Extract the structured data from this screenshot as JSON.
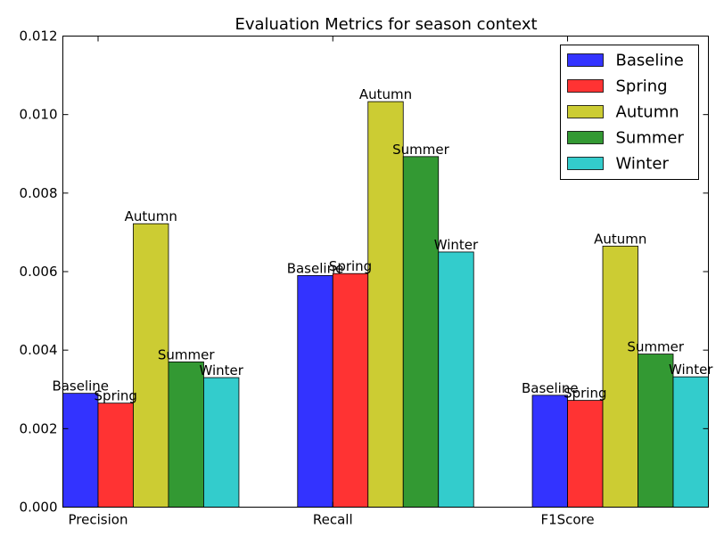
{
  "chart_data": {
    "type": "bar",
    "title": "Evaluation Metrics for season context",
    "xlabel": "",
    "ylabel": "",
    "categories": [
      "Precision",
      "Recall",
      "F1Score"
    ],
    "ylim": [
      0,
      0.012
    ],
    "yticks": [
      "0.000",
      "0.002",
      "0.004",
      "0.006",
      "0.008",
      "0.010",
      "0.012"
    ],
    "grid": false,
    "legend_position": "top-right",
    "series": [
      {
        "name": "Baseline",
        "color": "#3333ff",
        "values": [
          0.0029,
          0.0059,
          0.00285
        ]
      },
      {
        "name": "Spring",
        "color": "#ff3333",
        "values": [
          0.00265,
          0.00595,
          0.00272
        ]
      },
      {
        "name": "Autumn",
        "color": "#cccc33",
        "values": [
          0.00722,
          0.01033,
          0.00665
        ]
      },
      {
        "name": "Summer",
        "color": "#339933",
        "values": [
          0.0037,
          0.00893,
          0.0039
        ]
      },
      {
        "name": "Winter",
        "color": "#33cccc",
        "values": [
          0.0033,
          0.0065,
          0.00332
        ]
      }
    ]
  }
}
